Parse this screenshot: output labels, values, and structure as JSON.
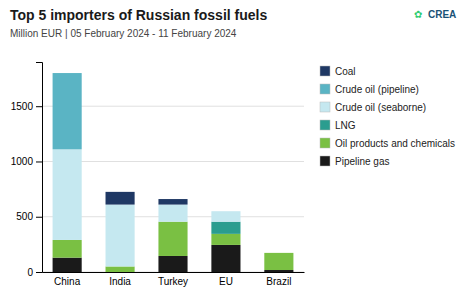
{
  "chart_data": {
    "type": "bar",
    "stacked": true,
    "title": "Top 5 importers of Russian fossil fuels",
    "subtitle": "Million EUR | 05 February 2024 - 11 February 2024",
    "annotations": [
      "✿",
      "CREA"
    ],
    "categories": [
      "China",
      "India",
      "Turkey",
      "EU",
      "Brazil"
    ],
    "series": [
      {
        "name": "Pipeline gas",
        "color": "#1a1a1a",
        "values": [
          130,
          0,
          145,
          245,
          18
        ]
      },
      {
        "name": "Oil products and chemicals",
        "color": "#7ac043",
        "values": [
          160,
          50,
          310,
          100,
          155
        ]
      },
      {
        "name": "LNG",
        "color": "#2a9d8f",
        "values": [
          0,
          0,
          0,
          110,
          0
        ]
      },
      {
        "name": "Crude oil (seaborne)",
        "color": "#c5e8f0",
        "values": [
          820,
          560,
          155,
          95,
          0
        ]
      },
      {
        "name": "Crude oil (pipeline)",
        "color": "#5ab4c4",
        "values": [
          690,
          0,
          0,
          0,
          0
        ]
      },
      {
        "name": "Coal",
        "color": "#1f3864",
        "values": [
          0,
          115,
          50,
          0,
          0
        ]
      }
    ],
    "ylim": [
      0,
      1900
    ],
    "yticks": [
      0,
      500,
      1000,
      1500
    ],
    "grid": true,
    "legend": "right"
  }
}
